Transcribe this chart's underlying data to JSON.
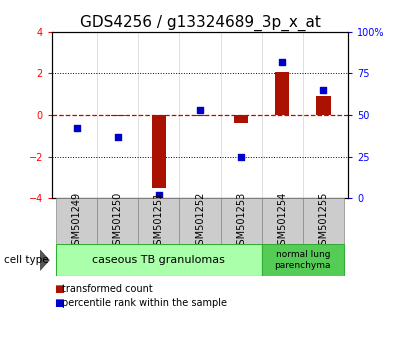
{
  "title": "GDS4256 / g13324689_3p_x_at",
  "samples": [
    "GSM501249",
    "GSM501250",
    "GSM501251",
    "GSM501252",
    "GSM501253",
    "GSM501254",
    "GSM501255"
  ],
  "transformed_counts": [
    0.0,
    -0.05,
    -3.5,
    -0.05,
    -0.4,
    2.05,
    0.9
  ],
  "percentile_ranks": [
    42,
    37,
    2,
    53,
    25,
    82,
    65
  ],
  "ylim_left": [
    -4,
    4
  ],
  "ylim_right": [
    0,
    100
  ],
  "yticks_left": [
    -4,
    -2,
    0,
    2,
    4
  ],
  "yticks_right": [
    0,
    25,
    50,
    75,
    100
  ],
  "ytick_labels_right": [
    "0",
    "25",
    "50",
    "75",
    "100%"
  ],
  "bar_color": "#aa1100",
  "dot_color": "#0000cc",
  "hline_color": "#cc0000",
  "group1_label": "caseous TB granulomas",
  "group2_label": "normal lung\nparenchyma",
  "group1_color": "#aaffaa",
  "group2_color": "#55cc55",
  "cell_type_label": "cell type",
  "legend_bar_label": "transformed count",
  "legend_dot_label": "percentile rank within the sample",
  "tick_label_fontsize": 7,
  "title_fontsize": 11,
  "group_label_fontsize": 8,
  "bar_width": 0.35
}
